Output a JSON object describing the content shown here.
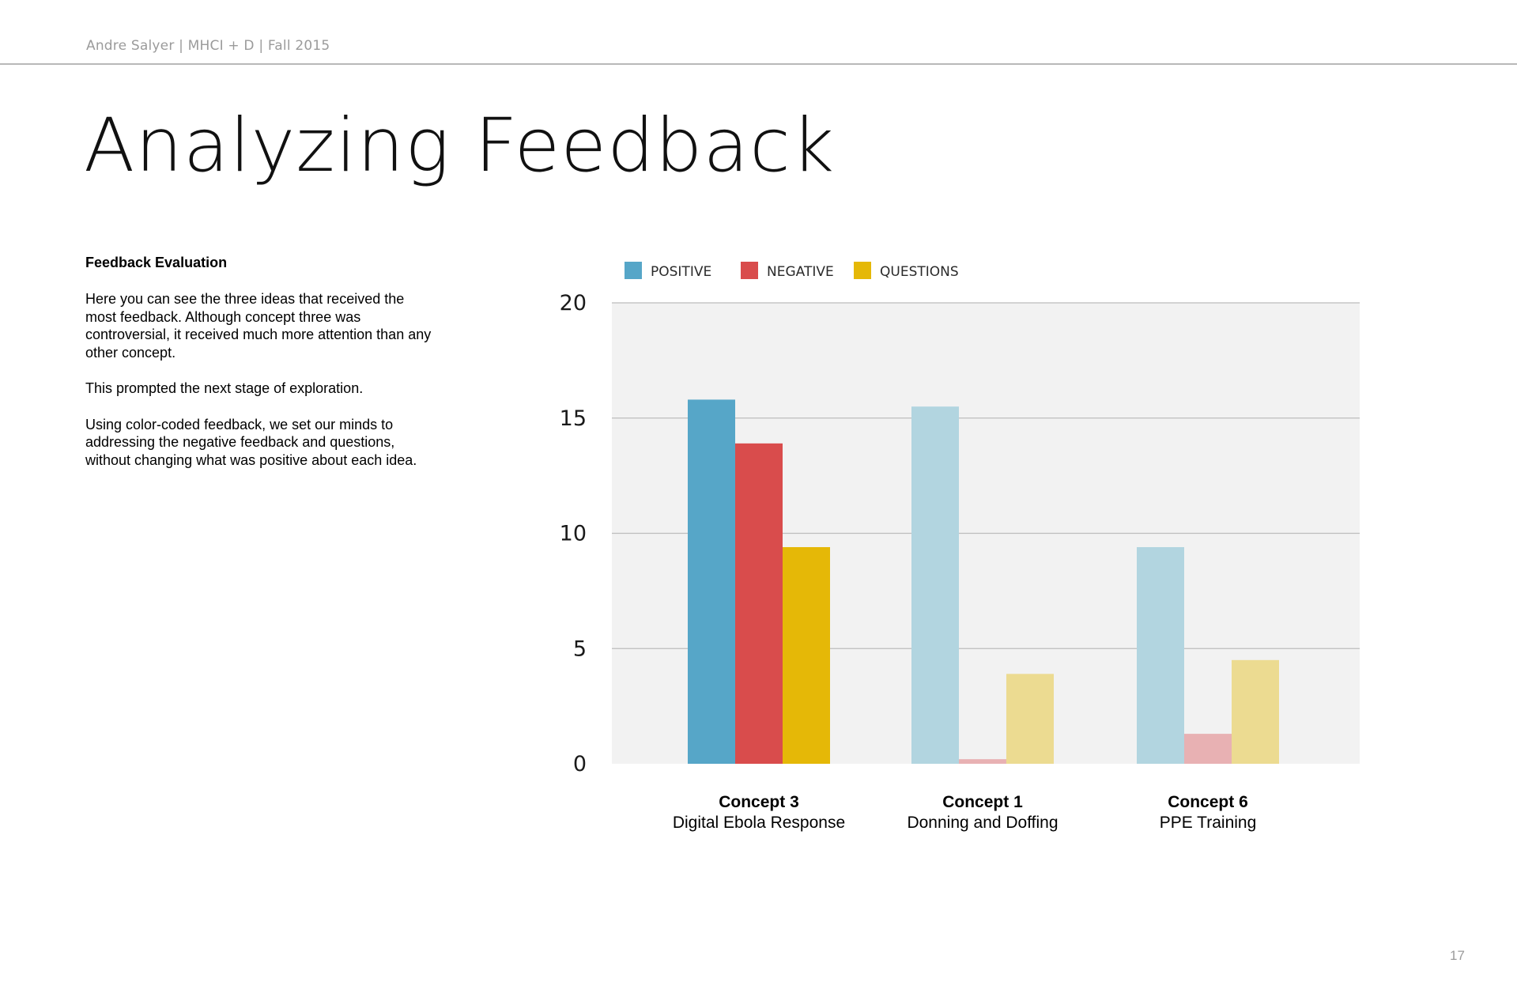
{
  "header": {
    "text": "Andre Salyer | MHCI + D | Fall 2015"
  },
  "title": "Analyzing Feedback",
  "sidebar": {
    "heading": "Feedback Evaluation",
    "paragraphs": [
      "Here you can see the three ideas that received the most feedback. Although concept three was controversial, it received much more attention than any other concept.",
      "This prompted the next stage of exploration.",
      "Using color-coded feedback, we set our minds to addressing the negative feedback and questions, without changing what was positive about each idea."
    ]
  },
  "page_number": "17",
  "colors": {
    "positive": "#56a6c8",
    "negative": "#d94c4c",
    "questions": "#e5b807",
    "positive_faded": "#b2d5e0",
    "negative_faded": "#e8b1b3",
    "questions_faded": "#ecdb91",
    "plot_bg": "#f2f2f2",
    "grid": "#bdbdbd"
  },
  "chart_data": {
    "type": "bar",
    "categories": [
      "Concept 3",
      "Concept 1",
      "Concept 6"
    ],
    "category_sublabels": [
      "Digital Ebola Response",
      "Donning and Doffing",
      "PPE Training"
    ],
    "series": [
      {
        "name": "POSITIVE",
        "values": [
          15.8,
          15.5,
          9.4
        ]
      },
      {
        "name": "NEGATIVE",
        "values": [
          13.9,
          0.2,
          1.3
        ]
      },
      {
        "name": "QUESTIONS",
        "values": [
          9.4,
          3.9,
          4.5
        ]
      }
    ],
    "highlighted_category": "Concept 3",
    "yticks": [
      0,
      5,
      10,
      15,
      20
    ],
    "ylim": [
      0,
      20
    ],
    "legend_position": "top-left",
    "grid": true
  }
}
